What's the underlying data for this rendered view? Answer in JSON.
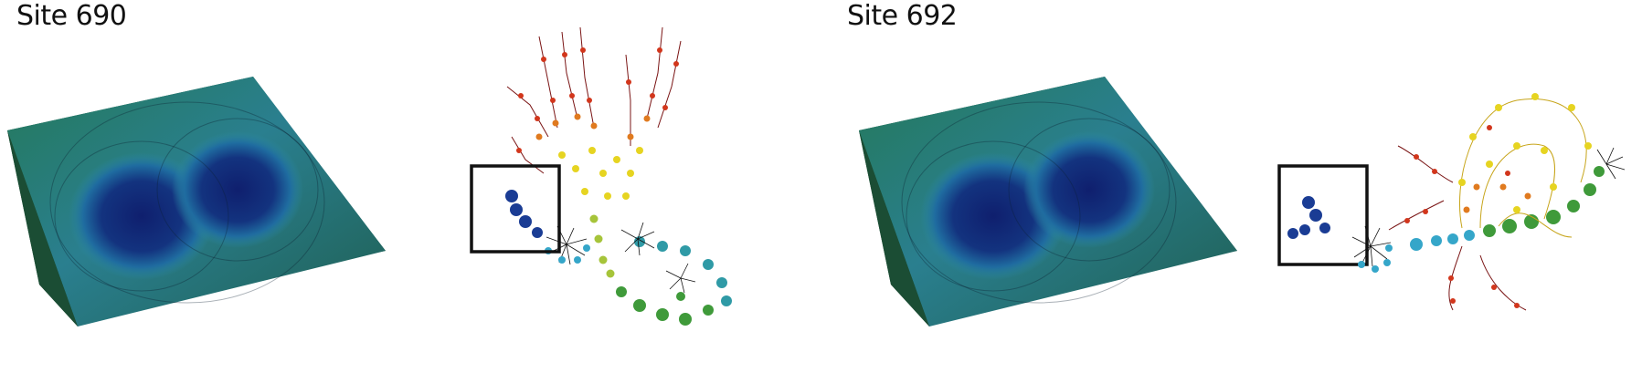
{
  "panels": [
    {
      "title": "Site 690"
    },
    {
      "title": "Site 692"
    }
  ],
  "colors": {
    "deep_blue": "#0f1f6e",
    "mid_blue": "#1a5aa8",
    "cyan": "#35a6c9",
    "teal": "#2f9aa6",
    "green": "#3f9a3a",
    "yellow_green": "#a6c43a",
    "yellow": "#e6d421",
    "orange": "#e07a1f",
    "red": "#c8321c",
    "dark_red": "#7a1414",
    "highlight_box": "#111111"
  }
}
